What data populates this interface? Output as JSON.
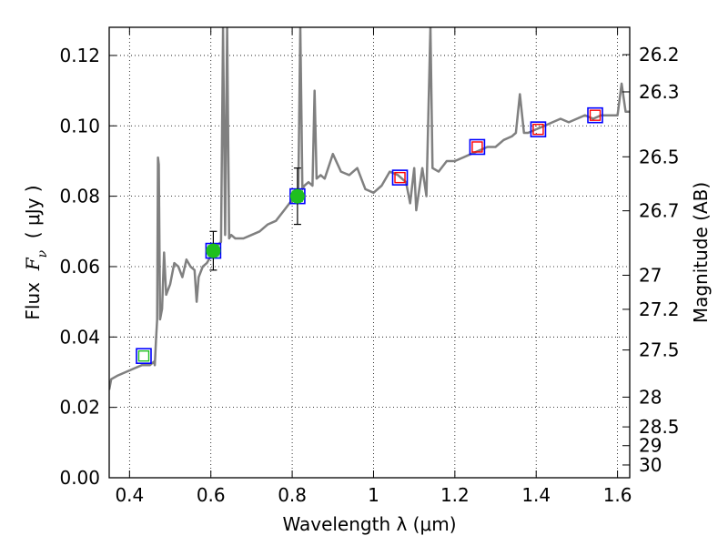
{
  "chart_data": {
    "type": "line",
    "title": "",
    "xlabel": "Wavelength  λ (μm)",
    "ylabel": "Flux  F_ν  ( μJy )",
    "ylabel_parts": {
      "prefix": "Flux  ",
      "math": "F",
      "sub": "ν",
      "suffix": "  ( μJy )"
    },
    "y2label": "Magnitude (AB)",
    "xlim": [
      0.35,
      1.63
    ],
    "ylim": [
      0.0,
      0.128
    ],
    "grid": true,
    "x_ticks": [
      0.4,
      0.6,
      0.8,
      1.0,
      1.2,
      1.4,
      1.6
    ],
    "x_tick_labels": [
      "0.4",
      "0.6",
      "0.8",
      "1",
      "1.2",
      "1.4",
      "1.6"
    ],
    "y_ticks": [
      0.0,
      0.02,
      0.04,
      0.06,
      0.08,
      0.1,
      0.12
    ],
    "y_tick_labels": [
      "0.00",
      "0.02",
      "0.04",
      "0.06",
      "0.08",
      "0.10",
      "0.12"
    ],
    "y2_ticks": [
      26.2,
      26.3,
      26.5,
      26.7,
      27,
      27.2,
      27.5,
      28,
      28.5,
      29,
      30
    ],
    "y2_tick_labels": [
      "26.2",
      "26.3",
      "26.5",
      "26.7",
      "27",
      "27.2",
      "27.5",
      "28",
      "28.5",
      "29",
      "30"
    ],
    "colors": {
      "spectrum": "#808080",
      "observed_point": "#1fbf1f",
      "open_square_outer": "#0000ff",
      "open_square_inner_green": "#1fbf1f",
      "open_square_inner_red": "#ff0000",
      "error_bar": "#000000",
      "grid": "#000000"
    },
    "series": [
      {
        "kind": "spectrum",
        "values_xy": [
          [
            0.35,
            0.025
          ],
          [
            0.355,
            0.028
          ],
          [
            0.37,
            0.029
          ],
          [
            0.39,
            0.03
          ],
          [
            0.41,
            0.031
          ],
          [
            0.43,
            0.032
          ],
          [
            0.45,
            0.032
          ],
          [
            0.46,
            0.033
          ],
          [
            0.462,
            0.032
          ],
          [
            0.465,
            0.039
          ],
          [
            0.468,
            0.045
          ],
          [
            0.47,
            0.091
          ],
          [
            0.472,
            0.089
          ],
          [
            0.475,
            0.045
          ],
          [
            0.48,
            0.048
          ],
          [
            0.485,
            0.064
          ],
          [
            0.49,
            0.052
          ],
          [
            0.5,
            0.055
          ],
          [
            0.51,
            0.061
          ],
          [
            0.52,
            0.06
          ],
          [
            0.53,
            0.057
          ],
          [
            0.54,
            0.062
          ],
          [
            0.55,
            0.06
          ],
          [
            0.56,
            0.059
          ],
          [
            0.565,
            0.05
          ],
          [
            0.57,
            0.057
          ],
          [
            0.58,
            0.06
          ],
          [
            0.59,
            0.061
          ],
          [
            0.6,
            0.063
          ],
          [
            0.61,
            0.064
          ],
          [
            0.615,
            0.066
          ],
          [
            0.625,
            0.067
          ],
          [
            0.63,
            0.128
          ],
          [
            0.635,
            0.069
          ],
          [
            0.64,
            0.128
          ],
          [
            0.645,
            0.068
          ],
          [
            0.65,
            0.069
          ],
          [
            0.66,
            0.068
          ],
          [
            0.68,
            0.068
          ],
          [
            0.7,
            0.069
          ],
          [
            0.72,
            0.07
          ],
          [
            0.74,
            0.072
          ],
          [
            0.76,
            0.073
          ],
          [
            0.78,
            0.076
          ],
          [
            0.8,
            0.079
          ],
          [
            0.81,
            0.08
          ],
          [
            0.815,
            0.081
          ],
          [
            0.82,
            0.128
          ],
          [
            0.825,
            0.082
          ],
          [
            0.83,
            0.083
          ],
          [
            0.84,
            0.084
          ],
          [
            0.85,
            0.083
          ],
          [
            0.855,
            0.11
          ],
          [
            0.86,
            0.085
          ],
          [
            0.87,
            0.086
          ],
          [
            0.88,
            0.085
          ],
          [
            0.9,
            0.092
          ],
          [
            0.92,
            0.087
          ],
          [
            0.94,
            0.086
          ],
          [
            0.96,
            0.088
          ],
          [
            0.98,
            0.082
          ],
          [
            1.0,
            0.081
          ],
          [
            1.02,
            0.083
          ],
          [
            1.04,
            0.087
          ],
          [
            1.06,
            0.086
          ],
          [
            1.08,
            0.084
          ],
          [
            1.09,
            0.078
          ],
          [
            1.1,
            0.088
          ],
          [
            1.105,
            0.076
          ],
          [
            1.12,
            0.088
          ],
          [
            1.13,
            0.08
          ],
          [
            1.14,
            0.128
          ],
          [
            1.145,
            0.088
          ],
          [
            1.16,
            0.087
          ],
          [
            1.18,
            0.09
          ],
          [
            1.2,
            0.09
          ],
          [
            1.22,
            0.091
          ],
          [
            1.24,
            0.092
          ],
          [
            1.26,
            0.093
          ],
          [
            1.28,
            0.094
          ],
          [
            1.3,
            0.094
          ],
          [
            1.32,
            0.096
          ],
          [
            1.34,
            0.097
          ],
          [
            1.35,
            0.098
          ],
          [
            1.36,
            0.109
          ],
          [
            1.37,
            0.098
          ],
          [
            1.38,
            0.098
          ],
          [
            1.4,
            0.099
          ],
          [
            1.42,
            0.1
          ],
          [
            1.44,
            0.101
          ],
          [
            1.46,
            0.102
          ],
          [
            1.48,
            0.101
          ],
          [
            1.5,
            0.102
          ],
          [
            1.52,
            0.103
          ],
          [
            1.54,
            0.102
          ],
          [
            1.56,
            0.103
          ],
          [
            1.58,
            0.103
          ],
          [
            1.6,
            0.103
          ],
          [
            1.61,
            0.112
          ],
          [
            1.62,
            0.104
          ],
          [
            1.63,
            0.104
          ]
        ]
      },
      {
        "kind": "observed",
        "values_xy": [
          [
            0.606,
            0.0645
          ],
          [
            0.813,
            0.08
          ]
        ],
        "errors_y": [
          0.0055,
          0.008
        ]
      },
      {
        "kind": "model_squares_green",
        "values_xy": [
          [
            0.435,
            0.0346
          ],
          [
            0.606,
            0.0645
          ],
          [
            0.813,
            0.08
          ]
        ]
      },
      {
        "kind": "model_squares_red",
        "values_xy": [
          [
            1.065,
            0.0853
          ],
          [
            1.255,
            0.094
          ],
          [
            1.405,
            0.099
          ],
          [
            1.545,
            0.103
          ]
        ]
      }
    ]
  }
}
